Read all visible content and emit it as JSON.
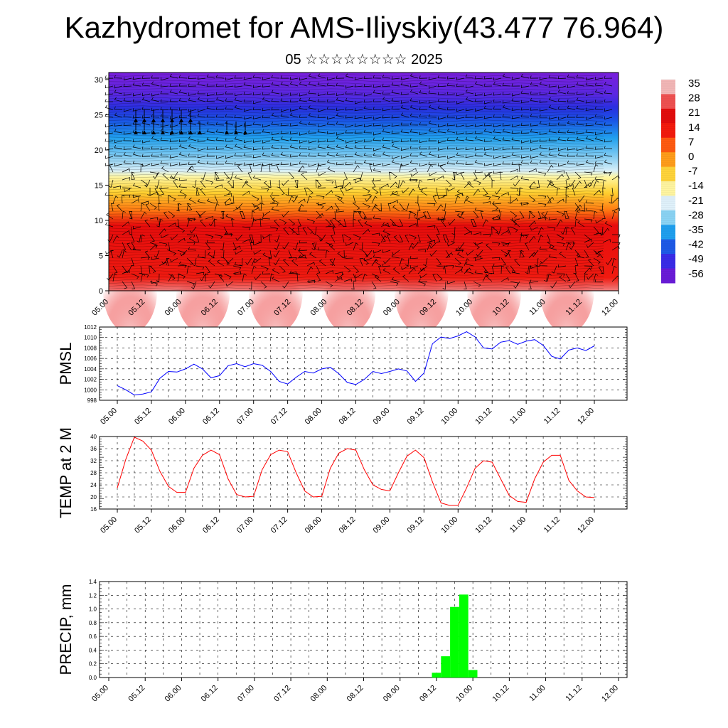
{
  "header": {
    "title": "Kazhydromet for AMS-Iliyskiy(43.477 76.964)",
    "subtitle": "05 ☆☆☆☆☆☆☆☆ 2025"
  },
  "chart_data": [
    {
      "type": "heatmap",
      "name": "temperature cross-section with wind barbs",
      "x_ticks": [
        "05.00",
        "05.12",
        "06.00",
        "06.12",
        "07.00",
        "07.12",
        "08.00",
        "08.12",
        "09.00",
        "09.12",
        "10.00",
        "10.12",
        "11.00",
        "11.12",
        "12.00"
      ],
      "y_ticks": [
        0,
        5,
        10,
        15,
        20,
        25,
        30
      ],
      "ylim": [
        0,
        31
      ],
      "colorbar_labels": [
        "35",
        "28",
        "21",
        "14",
        "7",
        "0",
        "-7",
        "-14",
        "-21",
        "-28",
        "-35",
        "-42",
        "-49",
        "-56"
      ],
      "colormap": [
        "#6a1bd8",
        "#3a2be8",
        "#1e5ae8",
        "#1fa0ef",
        "#8ad4f5",
        "#e0f2fb",
        "#fff5a0",
        "#ffd43a",
        "#ff9d1a",
        "#ff5a10",
        "#f41a0c",
        "#e30c0c",
        "#f05050",
        "#f4b8b8"
      ]
    },
    {
      "type": "line",
      "ylabel": "PMSL",
      "x_ticks": [
        "05.00",
        "05.12",
        "06.00",
        "06.12",
        "07.00",
        "07.12",
        "08.00",
        "08.12",
        "09.00",
        "09.12",
        "10.00",
        "10.12",
        "11.00",
        "11.12",
        "12.00"
      ],
      "ylim": [
        998,
        1012
      ],
      "y_ticks": [
        998,
        1000,
        1002,
        1004,
        1006,
        1008,
        1010,
        1012
      ],
      "color": "#0000ff",
      "x_step_hours": 3,
      "values": [
        1000.8,
        1000,
        999,
        999.2,
        999.6,
        1002.2,
        1003.5,
        1003.4,
        1004,
        1004.9,
        1004,
        1002.3,
        1002.7,
        1004.6,
        1005,
        1004.4,
        1005,
        1004.7,
        1003.5,
        1001.6,
        1001.1,
        1002.4,
        1003.5,
        1003.2,
        1004,
        1004.3,
        1003.1,
        1001.4,
        1001,
        1002,
        1003.5,
        1003.1,
        1003.5,
        1004,
        1003.6,
        1001.6,
        1003.2,
        1008.8,
        1010.1,
        1009.8,
        1010.3,
        1011.1,
        1010.1,
        1008,
        1007.8,
        1009.1,
        1009.4,
        1008.7,
        1009.3,
        1009.6,
        1008.5,
        1006.4,
        1005.9,
        1007.6,
        1008,
        1007.5,
        1008.4
      ]
    },
    {
      "type": "line",
      "ylabel": "TEMP at 2 M",
      "x_ticks": [
        "05.00",
        "05.12",
        "06.00",
        "06.12",
        "07.00",
        "07.12",
        "08.00",
        "08.12",
        "09.00",
        "09.12",
        "10.00",
        "10.12",
        "11.00",
        "11.12",
        "12.00"
      ],
      "ylim": [
        16,
        40
      ],
      "y_ticks": [
        16,
        20,
        24,
        28,
        32,
        36,
        40
      ],
      "color": "#ff0000",
      "x_step_hours": 3,
      "values": [
        23,
        32.5,
        39.8,
        38.5,
        35.5,
        28.5,
        23.5,
        21.5,
        21.5,
        29.5,
        33.8,
        35.5,
        34,
        26,
        20.8,
        20,
        20.2,
        29,
        34,
        35.5,
        35,
        28,
        22,
        20,
        20.2,
        29.5,
        34.5,
        36,
        35.5,
        29,
        24,
        22.5,
        22,
        28,
        33.5,
        35.5,
        33,
        25,
        18,
        17.2,
        17.2,
        23,
        29.5,
        32,
        31.5,
        26,
        20.5,
        18.5,
        18.2,
        26,
        31.5,
        33.8,
        33.8,
        25.5,
        22,
        20,
        19.8
      ]
    },
    {
      "type": "bar",
      "ylabel": "PRECIP, mm",
      "x_ticks": [
        "05.00",
        "05.12",
        "06.00",
        "06.12",
        "07.00",
        "07.12",
        "08.00",
        "08.12",
        "09.00",
        "09.12",
        "10.00",
        "10.12",
        "11.00",
        "11.12",
        "12.00"
      ],
      "ylim": [
        0,
        1.4
      ],
      "y_ticks": [
        "0.0",
        "0.2",
        "0.4",
        "0.6",
        "0.8",
        "1.0",
        "1.2",
        "1.4"
      ],
      "color": "#00ff00",
      "bars": [
        {
          "x_hours": 108,
          "value": 0.07
        },
        {
          "x_hours": 111,
          "value": 0.31
        },
        {
          "x_hours": 114,
          "value": 1.03
        },
        {
          "x_hours": 117,
          "value": 1.21
        },
        {
          "x_hours": 120,
          "value": 0.11
        }
      ]
    }
  ]
}
